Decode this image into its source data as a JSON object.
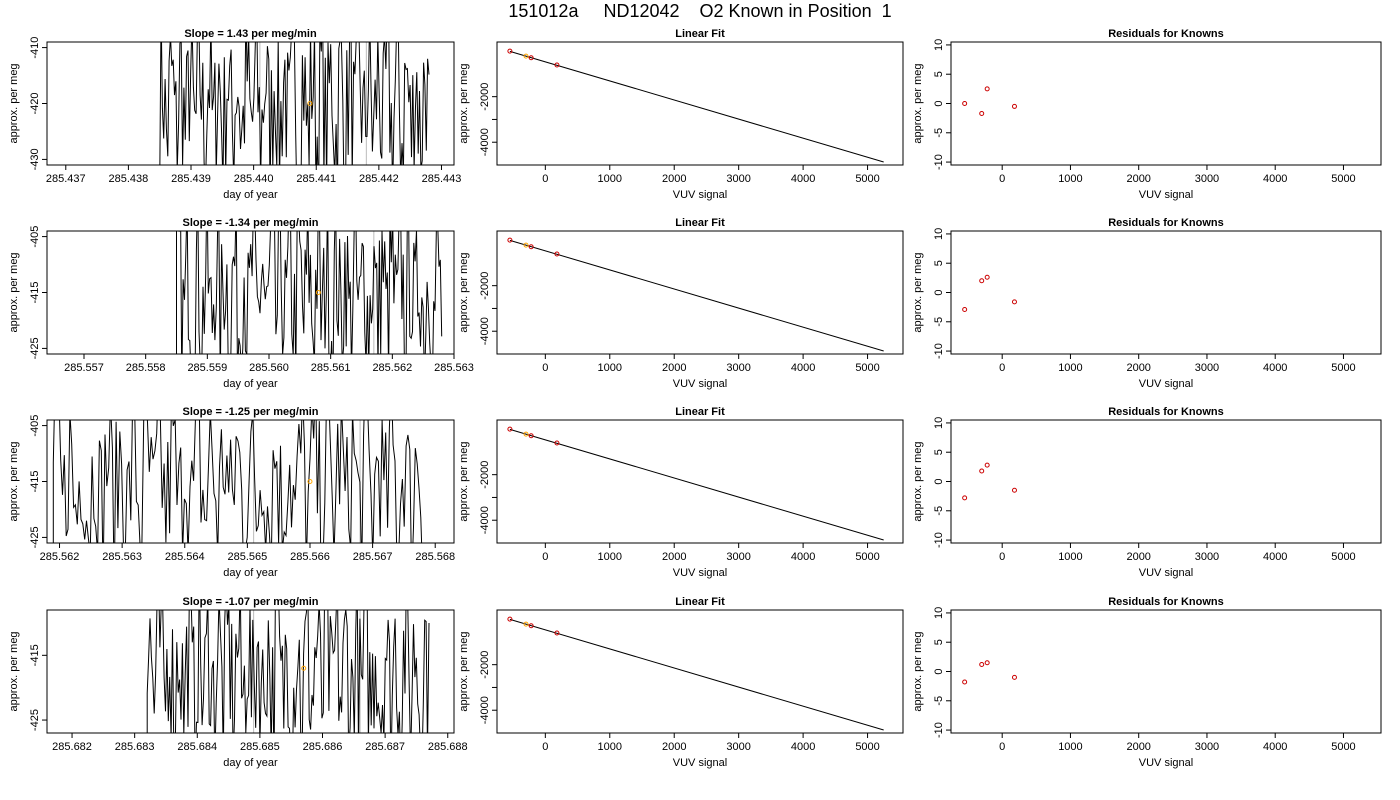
{
  "page": {
    "title": "151012a     ND12042    O2 Known in Position  1"
  },
  "colors": {
    "trace": "#000000",
    "marker_known": "#FFA500",
    "marker_resid": "#CC0000",
    "grid_vline": "#bbbbbb"
  },
  "chart_data": [
    {
      "type": "line",
      "row": 1,
      "panel": "time-series",
      "title": "Slope =  1.43  per meg/min",
      "xlabel": "day of year",
      "ylabel": "approx. per meg",
      "xlim": [
        285.4367,
        285.4432
      ],
      "ylim": [
        -431,
        -409
      ],
      "xticks": [
        285.437,
        285.438,
        285.439,
        285.44,
        285.441,
        285.442,
        285.443
      ],
      "yticks": [
        -430,
        -420,
        -410
      ],
      "vlines": [
        285.4401,
        285.4418
      ],
      "data_start": 285.4385,
      "data_end": 285.4428,
      "highlight_point": {
        "x": 285.4409,
        "y": -420
      }
    },
    {
      "type": "line",
      "row": 1,
      "panel": "linear-fit",
      "title": "Linear Fit",
      "xlabel": "VUV signal",
      "ylabel": "approx. per meg",
      "xlim": [
        -750,
        5550
      ],
      "ylim": [
        -5000,
        400
      ],
      "xticks": [
        0,
        1000,
        2000,
        3000,
        4000,
        5000
      ],
      "yticks": [
        -4000,
        -3000,
        -2000
      ],
      "ytick_labels": [
        "-4000",
        "",
        "-2000"
      ],
      "line": {
        "x": [
          -550,
          5250
        ],
        "y": [
          -10,
          -4870
        ]
      },
      "points": [
        {
          "x": -550,
          "y": 0,
          "color": "red"
        },
        {
          "x": -300,
          "y": -220,
          "color": "orange"
        },
        {
          "x": -220,
          "y": -290,
          "color": "red"
        },
        {
          "x": 180,
          "y": -610,
          "color": "red"
        }
      ]
    },
    {
      "type": "scatter",
      "row": 1,
      "panel": "residuals",
      "title": "Residuals for Knowns",
      "xlabel": "VUV signal",
      "ylabel": "approx. per meg",
      "xlim": [
        -750,
        5550
      ],
      "ylim": [
        -10.5,
        10.5
      ],
      "xticks": [
        0,
        1000,
        2000,
        3000,
        4000,
        5000
      ],
      "yticks": [
        -10,
        -5,
        0,
        5,
        10
      ],
      "points": [
        {
          "x": -550,
          "y": 0.0
        },
        {
          "x": -300,
          "y": -1.7
        },
        {
          "x": -220,
          "y": 2.5
        },
        {
          "x": 180,
          "y": -0.5
        }
      ]
    },
    {
      "type": "line",
      "row": 2,
      "panel": "time-series",
      "title": "Slope =  -1.34  per meg/min",
      "xlabel": "day of year",
      "ylabel": "approx. per meg",
      "xlim": [
        285.5564,
        285.563
      ],
      "ylim": [
        -426,
        -404
      ],
      "xticks": [
        285.557,
        285.558,
        285.559,
        285.56,
        285.561,
        285.562,
        285.563
      ],
      "yticks": [
        -425,
        -415,
        -405
      ],
      "vlines": [
        285.5617
      ],
      "data_start": 285.5585,
      "data_end": 285.5628,
      "highlight_point": {
        "x": 285.5608,
        "y": -415
      }
    },
    {
      "type": "line",
      "row": 2,
      "panel": "linear-fit",
      "title": "Linear Fit",
      "xlabel": "VUV signal",
      "ylabel": "approx. per meg",
      "xlim": [
        -750,
        5550
      ],
      "ylim": [
        -5000,
        400
      ],
      "xticks": [
        0,
        1000,
        2000,
        3000,
        4000,
        5000
      ],
      "yticks": [
        -4000,
        -3000,
        -2000
      ],
      "ytick_labels": [
        "-4000",
        "",
        "-2000"
      ],
      "line": {
        "x": [
          -550,
          5250
        ],
        "y": [
          -10,
          -4870
        ]
      },
      "points": [
        {
          "x": -550,
          "y": 0,
          "color": "red"
        },
        {
          "x": -300,
          "y": -220,
          "color": "orange"
        },
        {
          "x": -220,
          "y": -290,
          "color": "red"
        },
        {
          "x": 180,
          "y": -610,
          "color": "red"
        }
      ]
    },
    {
      "type": "scatter",
      "row": 2,
      "panel": "residuals",
      "title": "Residuals for Knowns",
      "xlabel": "VUV signal",
      "ylabel": "approx. per meg",
      "xlim": [
        -750,
        5550
      ],
      "ylim": [
        -10.5,
        10.5
      ],
      "xticks": [
        0,
        1000,
        2000,
        3000,
        4000,
        5000
      ],
      "yticks": [
        -10,
        -5,
        0,
        5,
        10
      ],
      "points": [
        {
          "x": -550,
          "y": -2.9
        },
        {
          "x": -300,
          "y": 2.0
        },
        {
          "x": -220,
          "y": 2.6
        },
        {
          "x": 180,
          "y": -1.6
        }
      ]
    },
    {
      "type": "line",
      "row": 3,
      "panel": "time-series",
      "title": "Slope =  -1.25  per meg/min",
      "xlabel": "day of year",
      "ylabel": "approx. per meg",
      "xlim": [
        285.5618,
        285.5683
      ],
      "ylim": [
        -426,
        -404
      ],
      "xticks": [
        285.562,
        285.563,
        285.564,
        285.565,
        285.566,
        285.567,
        285.568
      ],
      "yticks": [
        -425,
        -415,
        -405
      ],
      "vlines": [
        285.5651,
        285.5668
      ],
      "data_start": 285.5619,
      "data_end": 285.5678,
      "highlight_point": {
        "x": 285.566,
        "y": -415
      }
    },
    {
      "type": "line",
      "row": 3,
      "panel": "linear-fit",
      "title": "Linear Fit",
      "xlabel": "VUV signal",
      "ylabel": "approx. per meg",
      "xlim": [
        -750,
        5550
      ],
      "ylim": [
        -5000,
        400
      ],
      "xticks": [
        0,
        1000,
        2000,
        3000,
        4000,
        5000
      ],
      "yticks": [
        -4000,
        -3000,
        -2000
      ],
      "ytick_labels": [
        "-4000",
        "",
        "-2000"
      ],
      "line": {
        "x": [
          -550,
          5250
        ],
        "y": [
          -10,
          -4870
        ]
      },
      "points": [
        {
          "x": -550,
          "y": 0,
          "color": "red"
        },
        {
          "x": -300,
          "y": -220,
          "color": "orange"
        },
        {
          "x": -220,
          "y": -290,
          "color": "red"
        },
        {
          "x": 180,
          "y": -610,
          "color": "red"
        }
      ]
    },
    {
      "type": "scatter",
      "row": 3,
      "panel": "residuals",
      "title": "Residuals for Knowns",
      "xlabel": "VUV signal",
      "ylabel": "approx. per meg",
      "xlim": [
        -750,
        5550
      ],
      "ylim": [
        -10.5,
        10.5
      ],
      "xticks": [
        0,
        1000,
        2000,
        3000,
        4000,
        5000
      ],
      "yticks": [
        -10,
        -5,
        0,
        5,
        10
      ],
      "points": [
        {
          "x": -550,
          "y": -2.8
        },
        {
          "x": -300,
          "y": 1.8
        },
        {
          "x": -220,
          "y": 2.8
        },
        {
          "x": 180,
          "y": -1.5
        }
      ]
    },
    {
      "type": "line",
      "row": 4,
      "panel": "time-series",
      "title": "Slope =  -1.07  per meg/min",
      "xlabel": "day of year",
      "ylabel": "approx. per meg",
      "xlim": [
        285.6816,
        285.6881
      ],
      "ylim": [
        -427,
        -408
      ],
      "xticks": [
        285.682,
        285.683,
        285.684,
        285.685,
        285.686,
        285.687,
        285.688
      ],
      "yticks": [
        -425,
        -415
      ],
      "vlines": [
        285.6849,
        285.6866
      ],
      "data_start": 285.6832,
      "data_end": 285.6877,
      "highlight_point": {
        "x": 285.6857,
        "y": -417
      }
    },
    {
      "type": "line",
      "row": 4,
      "panel": "linear-fit",
      "title": "Linear Fit",
      "xlabel": "VUV signal",
      "ylabel": "approx. per meg",
      "xlim": [
        -750,
        5550
      ],
      "ylim": [
        -5000,
        400
      ],
      "xticks": [
        0,
        1000,
        2000,
        3000,
        4000,
        5000
      ],
      "yticks": [
        -4000,
        -3000,
        -2000
      ],
      "ytick_labels": [
        "-4000",
        "",
        "-2000"
      ],
      "line": {
        "x": [
          -550,
          5250
        ],
        "y": [
          -10,
          -4870
        ]
      },
      "points": [
        {
          "x": -550,
          "y": 0,
          "color": "red"
        },
        {
          "x": -300,
          "y": -220,
          "color": "orange"
        },
        {
          "x": -220,
          "y": -290,
          "color": "red"
        },
        {
          "x": 180,
          "y": -610,
          "color": "red"
        }
      ]
    },
    {
      "type": "scatter",
      "row": 4,
      "panel": "residuals",
      "title": "Residuals for Knowns",
      "xlabel": "VUV signal",
      "ylabel": "approx. per meg",
      "xlim": [
        -750,
        5550
      ],
      "ylim": [
        -10.5,
        10.5
      ],
      "xticks": [
        0,
        1000,
        2000,
        3000,
        4000,
        5000
      ],
      "yticks": [
        -10,
        -5,
        0,
        5,
        10
      ],
      "points": [
        {
          "x": -550,
          "y": -1.8
        },
        {
          "x": -300,
          "y": 1.2
        },
        {
          "x": -220,
          "y": 1.5
        },
        {
          "x": 180,
          "y": -1.0
        }
      ]
    }
  ]
}
